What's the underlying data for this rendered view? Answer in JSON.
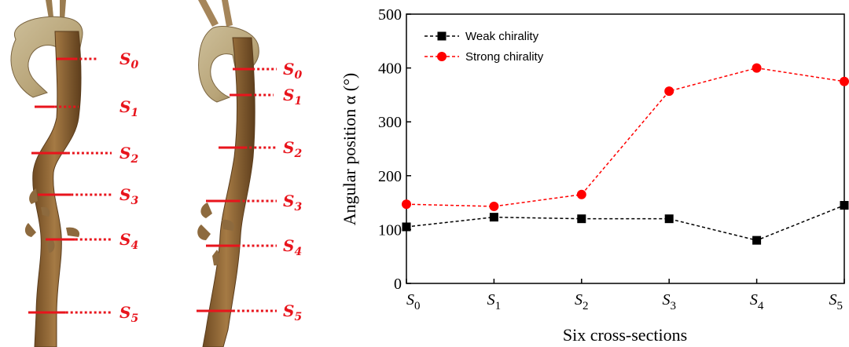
{
  "colors": {
    "weak": "#000000",
    "strong": "#ff0000",
    "cut": "#e8141c",
    "vessel": "#8a6232"
  },
  "panels": [
    {
      "cut_labels": [
        "S",
        "S",
        "S",
        "S",
        "S",
        "S"
      ],
      "cut_subs": [
        "0",
        "1",
        "2",
        "3",
        "4",
        "5"
      ]
    },
    {
      "cut_labels": [
        "S",
        "S",
        "S",
        "S",
        "S",
        "S"
      ],
      "cut_subs": [
        "0",
        "1",
        "2",
        "3",
        "4",
        "5"
      ]
    }
  ],
  "chart_data": {
    "type": "line",
    "categories": [
      "S",
      "S",
      "S",
      "S",
      "S",
      "S"
    ],
    "category_subs": [
      "0",
      "1",
      "2",
      "3",
      "4",
      "5"
    ],
    "xlabel": "Six cross-sections",
    "ylabel": "Angular position α (°)",
    "ylim": [
      0,
      500
    ],
    "yticks": [
      "0",
      "100",
      "200",
      "300",
      "400",
      "500"
    ],
    "legend": "top-left",
    "grid": false,
    "series": [
      {
        "name": "Weak chirality",
        "marker": "square",
        "values": [
          105,
          123,
          120,
          120,
          80,
          145
        ]
      },
      {
        "name": "Strong chirality",
        "marker": "circle",
        "values": [
          147,
          143,
          165,
          357,
          400,
          375
        ]
      }
    ]
  }
}
